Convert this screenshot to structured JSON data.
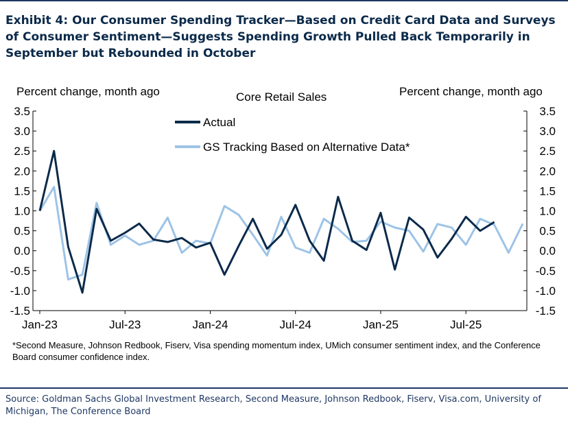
{
  "title": "Exhibit 4: Our Consumer Spending Tracker—Based on Credit Card Data and Surveys of Consumer Sentiment—Suggests Spending Growth Pulled Back Temporarily in September but Rebounded in October",
  "footnote": "*Second Measure, Johnson Redbook, Fiserv, Visa spending momentum index, UMich consumer sentiment index, and the Conference Board consumer confidence index.",
  "source": "Source: Goldman Sachs Global Investment Research, Second Measure, Johnson Redbook, Fiserv, Visa.com, University of Michigan, The Conference Board",
  "colors": {
    "title": "#0b2a4a",
    "rule": "#1f3864",
    "actual": "#0b2a4a",
    "tracking": "#9dc3e6"
  },
  "chart_data": {
    "type": "line",
    "title": "Core Retail Sales",
    "ylabel_left": "Percent change, month ago",
    "ylabel_right": "Percent change, month ago",
    "ylim": [
      -1.5,
      3.5
    ],
    "yticks": [
      -1.5,
      -1.0,
      -0.5,
      0.0,
      0.5,
      1.0,
      1.5,
      2.0,
      2.5,
      3.0,
      3.5
    ],
    "ytick_labels": [
      "-1.5",
      "-1.0",
      "-0.5",
      "0.0",
      "0.5",
      "1.0",
      "1.5",
      "2.0",
      "2.5",
      "3.0",
      "3.5"
    ],
    "xlim": [
      0,
      34
    ],
    "xticks": [
      {
        "x": 0,
        "label": "Jan-23"
      },
      {
        "x": 6,
        "label": "Jul-23"
      },
      {
        "x": 12,
        "label": "Jan-24"
      },
      {
        "x": 18,
        "label": "Jul-24"
      },
      {
        "x": 24,
        "label": "Jan-25"
      },
      {
        "x": 30,
        "label": "Jul-25"
      }
    ],
    "legend": "upper-left",
    "series": [
      {
        "name": "Actual",
        "x": [
          0,
          1,
          2,
          3,
          4,
          5,
          6,
          7,
          8,
          9,
          10,
          11,
          12,
          13,
          14,
          15,
          16,
          17,
          18,
          19,
          20,
          21,
          22,
          23,
          24,
          25,
          26,
          27,
          28,
          29,
          30,
          31,
          32
        ],
        "values": [
          1.0,
          2.5,
          0.1,
          -1.05,
          1.05,
          0.25,
          0.45,
          0.68,
          0.28,
          0.22,
          0.32,
          0.08,
          0.2,
          -0.6,
          0.12,
          0.8,
          0.05,
          0.4,
          1.15,
          0.25,
          -0.25,
          1.35,
          0.25,
          0.02,
          0.95,
          -0.47,
          0.83,
          0.53,
          -0.17,
          0.3,
          0.85,
          0.5,
          0.72
        ]
      },
      {
        "name": "GS Tracking Based on Alternative Data*",
        "x": [
          0,
          1,
          2,
          3,
          4,
          5,
          6,
          7,
          8,
          9,
          10,
          11,
          12,
          13,
          14,
          15,
          16,
          17,
          18,
          19,
          20,
          21,
          22,
          23,
          24,
          25,
          26,
          27,
          28,
          29,
          30,
          31,
          32,
          33,
          34
        ],
        "values": [
          1.0,
          1.6,
          -0.72,
          -0.6,
          1.2,
          0.15,
          0.38,
          0.15,
          0.25,
          0.83,
          -0.05,
          0.25,
          0.18,
          1.12,
          0.9,
          0.4,
          -0.12,
          0.85,
          0.08,
          -0.05,
          0.8,
          0.55,
          0.22,
          0.25,
          0.73,
          0.58,
          0.5,
          -0.02,
          0.67,
          0.58,
          0.15,
          0.8,
          0.65,
          -0.05,
          0.68
        ]
      }
    ]
  }
}
